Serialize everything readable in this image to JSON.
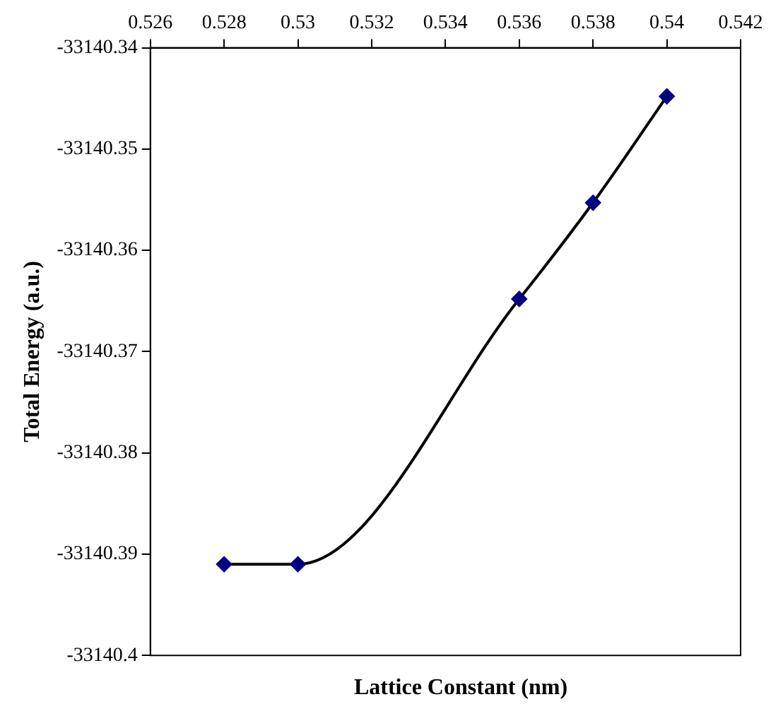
{
  "chart_data": {
    "type": "line",
    "xlabel": "Lattice Constant (nm)",
    "ylabel": "Total Energy (a.u.)",
    "x": [
      0.528,
      0.53,
      0.536,
      0.538,
      0.54
    ],
    "series": [
      {
        "color": "#000080",
        "values": [
          -33140.391,
          -33140.391,
          -33140.3648,
          -33140.3553,
          -33140.3448
        ]
      }
    ],
    "xlim": [
      0.526,
      0.542
    ],
    "xticks": [
      0.526,
      0.528,
      0.53,
      0.532,
      0.534,
      0.536,
      0.538,
      0.54,
      0.542
    ],
    "ylim": [
      -33140.4,
      -33140.34
    ],
    "yticks": [
      -33140.4,
      -33140.39,
      -33140.38,
      -33140.37,
      -33140.36,
      -33140.35,
      -33140.34
    ],
    "grid": false,
    "legend": false,
    "marker": "diamond",
    "line_style": "solid"
  }
}
